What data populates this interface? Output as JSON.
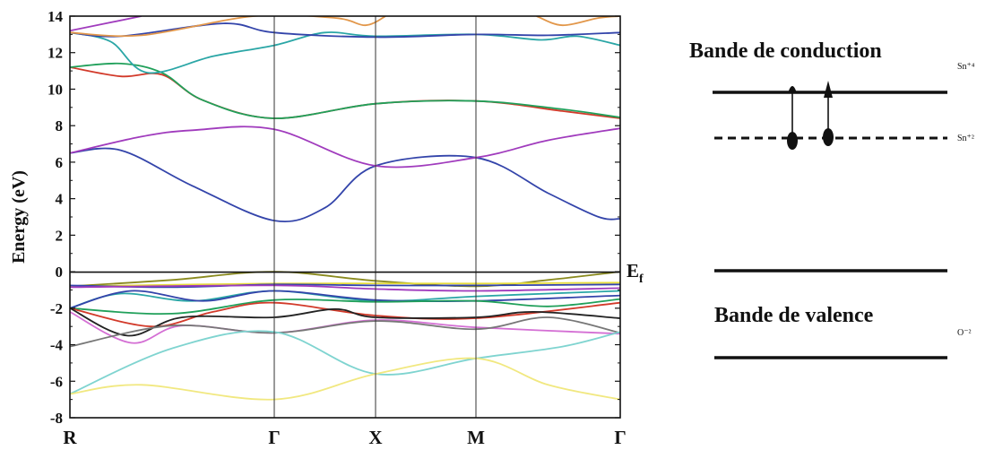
{
  "chart_data": [
    {
      "type": "line",
      "title": "",
      "xlabel": "",
      "ylabel": "Energy (eV)",
      "ylim": [
        -8,
        14
      ],
      "yticks": [
        -8,
        -6,
        -4,
        -2,
        0,
        2,
        4,
        6,
        8,
        10,
        12,
        14
      ],
      "grid": false,
      "legend": "none",
      "k_points": [
        {
          "label": "R",
          "x": 0
        },
        {
          "label": "Γ",
          "x": 1
        },
        {
          "label": "X",
          "x": 1.5
        },
        {
          "label": "M",
          "x": 2
        },
        {
          "label": "Γ",
          "x": 3
        }
      ],
      "fermi_label": "E",
      "fermi_label_sub": "f",
      "fermi_level": 0,
      "series": [
        {
          "color": "#3344aa",
          "points": [
            [
              0,
              6.5
            ],
            [
              0.25,
              6.65
            ],
            [
              0.6,
              4.7
            ],
            [
              1,
              2.8
            ],
            [
              1.25,
              3.5
            ],
            [
              1.5,
              5.8
            ],
            [
              2,
              6.25
            ],
            [
              2.5,
              4.3
            ],
            [
              2.85,
              3.0
            ],
            [
              3,
              2.9
            ]
          ]
        },
        {
          "color": "#a03bbd",
          "points": [
            [
              0,
              6.5
            ],
            [
              0.35,
              7.4
            ],
            [
              0.6,
              7.75
            ],
            [
              1,
              7.8
            ],
            [
              1.5,
              5.8
            ],
            [
              2,
              6.25
            ],
            [
              2.5,
              7.2
            ],
            [
              3,
              7.85
            ]
          ]
        },
        {
          "color": "#d23a2a",
          "points": [
            [
              0,
              11.2
            ],
            [
              0.25,
              10.7
            ],
            [
              0.45,
              10.8
            ],
            [
              0.65,
              9.4
            ],
            [
              1,
              8.4
            ],
            [
              1.5,
              9.2
            ],
            [
              2,
              9.35
            ],
            [
              2.6,
              8.8
            ],
            [
              3,
              8.4
            ]
          ]
        },
        {
          "color": "#20a05a",
          "points": [
            [
              0,
              11.2
            ],
            [
              0.25,
              11.4
            ],
            [
              0.45,
              10.9
            ],
            [
              0.65,
              9.4
            ],
            [
              1,
              8.4
            ],
            [
              1.5,
              9.2
            ],
            [
              2,
              9.35
            ],
            [
              2.6,
              8.9
            ],
            [
              3,
              8.45
            ]
          ]
        },
        {
          "color": "#2aa6a6",
          "points": [
            [
              0,
              13.1
            ],
            [
              0.2,
              12.6
            ],
            [
              0.38,
              10.9
            ],
            [
              0.7,
              11.8
            ],
            [
              1,
              12.4
            ],
            [
              1.25,
              13.1
            ],
            [
              1.5,
              12.9
            ],
            [
              2,
              13.0
            ],
            [
              2.45,
              12.7
            ],
            [
              2.7,
              12.9
            ],
            [
              3,
              12.4
            ]
          ]
        },
        {
          "color": "#3344aa",
          "points": [
            [
              0,
              13.1
            ],
            [
              0.25,
              12.9
            ],
            [
              0.75,
              13.6
            ],
            [
              1,
              13.1
            ],
            [
              1.5,
              12.85
            ],
            [
              2,
              13.0
            ],
            [
              2.5,
              12.95
            ],
            [
              3,
              13.1
            ]
          ]
        },
        {
          "color": "#e2974a",
          "points": [
            [
              0,
              13.1
            ],
            [
              0.35,
              12.95
            ],
            [
              0.9,
              14.0
            ],
            [
              1.3,
              13.9
            ],
            [
              1.45,
              13.5
            ],
            [
              1.55,
              14.0
            ]
          ]
        },
        {
          "color": "#e2974a",
          "points": [
            [
              2.42,
              14.0
            ],
            [
              2.6,
              13.5
            ],
            [
              2.85,
              13.9
            ],
            [
              3,
              14.0
            ]
          ]
        },
        {
          "color": "#a03bbd",
          "points": [
            [
              0,
              13.2
            ],
            [
              0.35,
              14.0
            ]
          ]
        },
        {
          "color": "#8a8a1e",
          "points": [
            [
              0,
              -0.8
            ],
            [
              0.5,
              -0.45
            ],
            [
              1,
              0
            ],
            [
              1.5,
              -0.5
            ],
            [
              2,
              -0.8
            ],
            [
              2.5,
              -0.45
            ],
            [
              3,
              0
            ]
          ]
        },
        {
          "color": "#e6dc3c",
          "points": [
            [
              0,
              -0.8
            ],
            [
              1,
              -0.65
            ],
            [
              2,
              -0.65
            ],
            [
              3,
              -0.6
            ]
          ]
        },
        {
          "color": "#3344aa",
          "points": [
            [
              0,
              -0.75
            ],
            [
              0.5,
              -0.85
            ],
            [
              1,
              -0.7
            ],
            [
              1.5,
              -0.75
            ],
            [
              2,
              -0.75
            ],
            [
              3,
              -0.7
            ]
          ]
        },
        {
          "color": "#a03bbd",
          "points": [
            [
              0,
              -0.85
            ],
            [
              1,
              -0.75
            ],
            [
              1.5,
              -0.95
            ],
            [
              2,
              -1.05
            ],
            [
              3,
              -0.9
            ]
          ]
        },
        {
          "color": "#2aa6a6",
          "points": [
            [
              0,
              -2.0
            ],
            [
              0.25,
              -1.2
            ],
            [
              0.6,
              -1.6
            ],
            [
              1,
              -1.05
            ],
            [
              1.5,
              -1.6
            ],
            [
              2,
              -1.35
            ],
            [
              2.5,
              -1.2
            ],
            [
              3,
              -1.05
            ]
          ]
        },
        {
          "color": "#3344aa",
          "points": [
            [
              0,
              -2.0
            ],
            [
              0.3,
              -1.05
            ],
            [
              0.65,
              -1.6
            ],
            [
              1,
              -1.05
            ],
            [
              1.5,
              -1.55
            ],
            [
              2,
              -1.6
            ],
            [
              3,
              -1.3
            ]
          ]
        },
        {
          "color": "#20a05a",
          "points": [
            [
              0,
              -2.0
            ],
            [
              0.5,
              -2.3
            ],
            [
              1,
              -1.55
            ],
            [
              1.5,
              -1.65
            ],
            [
              2,
              -1.6
            ],
            [
              2.5,
              -1.9
            ],
            [
              3,
              -1.5
            ]
          ]
        },
        {
          "color": "#d23a2a",
          "points": [
            [
              0,
              -2.0
            ],
            [
              0.4,
              -3.0
            ],
            [
              0.7,
              -2.2
            ],
            [
              1,
              -1.7
            ],
            [
              1.5,
              -2.4
            ],
            [
              2,
              -2.55
            ],
            [
              3,
              -1.7
            ]
          ]
        },
        {
          "color": "#222222",
          "points": [
            [
              0,
              -2.0
            ],
            [
              0.28,
              -3.5
            ],
            [
              0.55,
              -2.5
            ],
            [
              1,
              -2.5
            ],
            [
              1.3,
              -2.05
            ],
            [
              1.5,
              -2.5
            ],
            [
              2,
              -2.5
            ],
            [
              2.4,
              -2.2
            ],
            [
              3,
              -2.55
            ]
          ]
        },
        {
          "color": "#d46fd4",
          "points": [
            [
              0,
              -2.2
            ],
            [
              0.3,
              -3.9
            ],
            [
              0.55,
              -2.95
            ],
            [
              1,
              -3.35
            ],
            [
              1.5,
              -2.65
            ],
            [
              2,
              -3.05
            ],
            [
              3,
              -3.4
            ]
          ]
        },
        {
          "color": "#777777",
          "points": [
            [
              0,
              -4.1
            ],
            [
              0.5,
              -2.95
            ],
            [
              1,
              -3.35
            ],
            [
              1.5,
              -2.7
            ],
            [
              2,
              -3.15
            ],
            [
              2.5,
              -2.5
            ],
            [
              3,
              -3.35
            ]
          ]
        },
        {
          "color": "#7fd4d0",
          "points": [
            [
              0,
              -6.7
            ],
            [
              0.5,
              -4.2
            ],
            [
              1,
              -3.3
            ],
            [
              1.5,
              -5.6
            ],
            [
              2,
              -4.75
            ],
            [
              2.6,
              -4.1
            ],
            [
              3,
              -3.3
            ]
          ]
        },
        {
          "color": "#f1e880",
          "points": [
            [
              0,
              -6.7
            ],
            [
              0.35,
              -6.2
            ],
            [
              1,
              -7.0
            ],
            [
              1.5,
              -5.6
            ],
            [
              2,
              -4.75
            ],
            [
              2.5,
              -6.2
            ],
            [
              3,
              -7.0
            ]
          ]
        }
      ]
    },
    {
      "type": "diagram",
      "title": "",
      "labels": {
        "conduction_band": "Bande de conduction",
        "valence_band": "Bande de valence",
        "sn4": "Sn⁺⁴",
        "sn2": "Sn⁺²",
        "o2": "O⁻²"
      }
    }
  ]
}
